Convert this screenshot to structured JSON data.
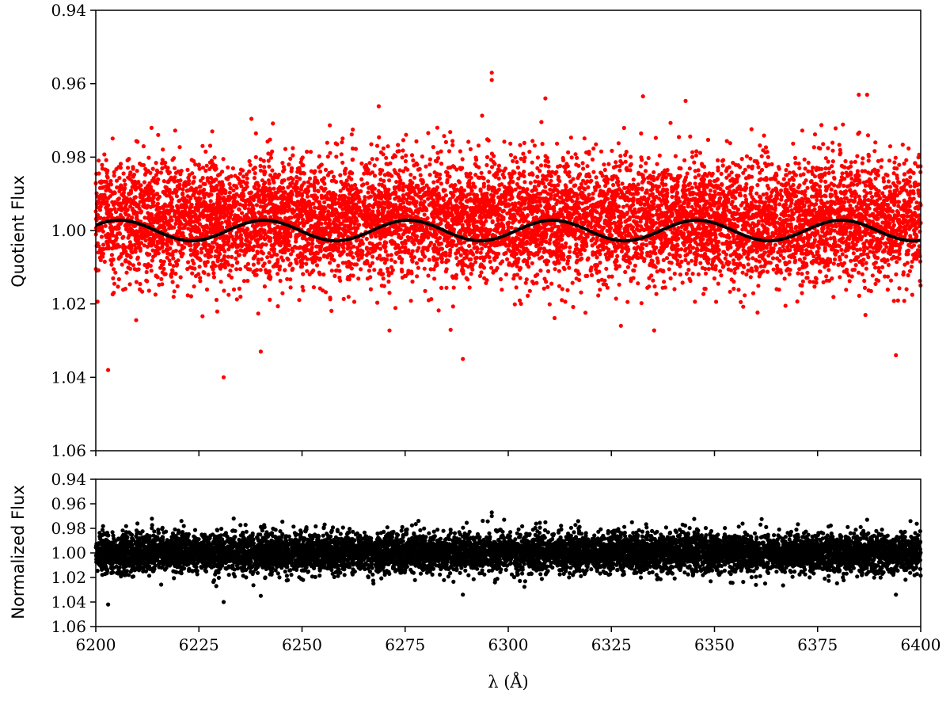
{
  "chart_data": [
    {
      "type": "scatter",
      "panel": "top",
      "title": "",
      "xlabel": "",
      "ylabel": "Quotient Flux",
      "xlim": [
        6200,
        6400
      ],
      "ylim": [
        1.06,
        0.94
      ],
      "y_inverted": true,
      "xticks": [
        6200,
        6225,
        6250,
        6275,
        6300,
        6325,
        6350,
        6375,
        6400
      ],
      "yticks": [
        "0.94",
        "0.96",
        "0.98",
        "1.00",
        "1.02",
        "1.04",
        "1.06"
      ],
      "grid": false,
      "legend": "none",
      "series": [
        {
          "kind": "points",
          "color": "#ff0000",
          "n_points_approx": 12000,
          "center": 0.997,
          "spread_sd": 0.008,
          "outliers": [
            {
              "x": 6203,
              "y": 1.038
            },
            {
              "x": 6231,
              "y": 1.04
            },
            {
              "x": 6240,
              "y": 1.033
            },
            {
              "x": 6289,
              "y": 1.035
            },
            {
              "x": 6296,
              "y": 0.957
            },
            {
              "x": 6296,
              "y": 0.959
            },
            {
              "x": 6309,
              "y": 0.964
            },
            {
              "x": 6385,
              "y": 0.963
            },
            {
              "x": 6387,
              "y": 0.963
            },
            {
              "x": 6394,
              "y": 1.034
            }
          ]
        },
        {
          "kind": "line",
          "color": "#000000",
          "description_values": {
            "mean": 1.0,
            "amplitude": 0.0028,
            "period_angstrom": 35,
            "phase_zero_at": 6197,
            "x_samples": [
              6200,
              6207,
              6217,
              6224,
              6234,
              6241,
              6251,
              6259,
              6276,
              6296,
              6311,
              6329,
              6347,
              6364,
              6383,
              6400
            ],
            "y_samples": [
              1.0015,
              0.9972,
              1.0018,
              1.0027,
              1.0,
              0.9972,
              1.0013,
              1.0027,
              0.9972,
              1.004,
              0.9972,
              1.0028,
              0.9972,
              1.0028,
              0.997,
              1.003
            ]
          }
        }
      ]
    },
    {
      "type": "scatter",
      "panel": "bottom",
      "title": "",
      "xlabel": "λ (Å)",
      "ylabel": "Normalized Flux",
      "xlim": [
        6200,
        6400
      ],
      "ylim": [
        1.06,
        0.94
      ],
      "y_inverted": true,
      "xticks": [
        6200,
        6225,
        6250,
        6275,
        6300,
        6325,
        6350,
        6375,
        6400
      ],
      "yticks": [
        "0.94",
        "0.96",
        "0.98",
        "1.00",
        "1.02",
        "1.04",
        "1.06"
      ],
      "grid": false,
      "legend": "none",
      "series": [
        {
          "kind": "points",
          "color": "#000000",
          "n_points_approx": 12000,
          "center": 1.0,
          "spread_sd": 0.008,
          "outliers": [
            {
              "x": 6203,
              "y": 1.042
            },
            {
              "x": 6231,
              "y": 1.04
            },
            {
              "x": 6240,
              "y": 1.035
            },
            {
              "x": 6289,
              "y": 1.034
            },
            {
              "x": 6296,
              "y": 0.967
            },
            {
              "x": 6296,
              "y": 0.97
            },
            {
              "x": 6309,
              "y": 0.975
            },
            {
              "x": 6330,
              "y": 0.975
            },
            {
              "x": 6387,
              "y": 0.973
            },
            {
              "x": 6394,
              "y": 1.034
            }
          ]
        }
      ]
    }
  ]
}
